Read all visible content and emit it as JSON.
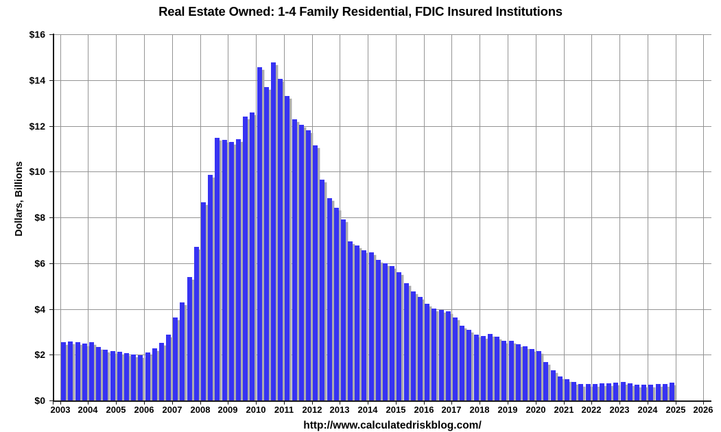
{
  "chart_data": {
    "type": "bar",
    "title": "Real Estate Owned: 1-4 Family Residential, FDIC Insured Institutions",
    "ylabel": "Dollars, Billions",
    "xlabel": "",
    "footer_url": "http://www.calculatedriskblog.com/",
    "unit": "billions of dollars",
    "frequency": "quarterly",
    "grid": true,
    "legend": false,
    "ylim": [
      0,
      16
    ],
    "y_ticks": [
      0,
      2,
      4,
      6,
      8,
      10,
      12,
      14,
      16
    ],
    "y_tick_labels": [
      "$0",
      "$2",
      "$4",
      "$6",
      "$8",
      "$10",
      "$12",
      "$14",
      "$16"
    ],
    "x_tick_labels": [
      "2003",
      "2004",
      "2005",
      "2006",
      "2007",
      "2008",
      "2009",
      "2010",
      "2011",
      "2012",
      "2013",
      "2014",
      "2015",
      "2016",
      "2017",
      "2018",
      "2019",
      "2020",
      "2021",
      "2022",
      "2023",
      "2024",
      "2025",
      "2026"
    ],
    "bar_color": "#3733F2",
    "bar_shadow_color": "#ACACAC",
    "gridline_color": "#949494",
    "axis_color": "#1A1A1A",
    "data": [
      {
        "year": 2003,
        "values": [
          2.55,
          2.58,
          2.54,
          2.48
        ]
      },
      {
        "year": 2004,
        "values": [
          2.54,
          2.35,
          2.23,
          2.17
        ]
      },
      {
        "year": 2005,
        "values": [
          2.13,
          2.06,
          2.0,
          1.98
        ]
      },
      {
        "year": 2006,
        "values": [
          2.1,
          2.28,
          2.53,
          2.88
        ]
      },
      {
        "year": 2007,
        "values": [
          3.62,
          4.28,
          5.38,
          6.72
        ]
      },
      {
        "year": 2008,
        "values": [
          8.65,
          9.85,
          11.48,
          11.4
        ]
      },
      {
        "year": 2009,
        "values": [
          11.3,
          11.42,
          12.4,
          12.6
        ]
      },
      {
        "year": 2010,
        "values": [
          14.55,
          13.7,
          14.76,
          14.05
        ]
      },
      {
        "year": 2011,
        "values": [
          13.3,
          12.28,
          12.05,
          11.8
        ]
      },
      {
        "year": 2012,
        "values": [
          11.15,
          9.65,
          8.85,
          8.42
        ]
      },
      {
        "year": 2013,
        "values": [
          7.92,
          6.95,
          6.76,
          6.55
        ]
      },
      {
        "year": 2014,
        "values": [
          6.47,
          6.13,
          5.98,
          5.87
        ]
      },
      {
        "year": 2015,
        "values": [
          5.6,
          5.12,
          4.77,
          4.53
        ]
      },
      {
        "year": 2016,
        "values": [
          4.22,
          4.02,
          3.95,
          3.9
        ]
      },
      {
        "year": 2017,
        "values": [
          3.63,
          3.28,
          3.08,
          2.89
        ]
      },
      {
        "year": 2018,
        "values": [
          2.82,
          2.92,
          2.78,
          2.62
        ]
      },
      {
        "year": 2019,
        "values": [
          2.62,
          2.45,
          2.36,
          2.26
        ]
      },
      {
        "year": 2020,
        "values": [
          2.16,
          1.68,
          1.32,
          1.06
        ]
      },
      {
        "year": 2021,
        "values": [
          0.92,
          0.8,
          0.73,
          0.72
        ]
      },
      {
        "year": 2022,
        "values": [
          0.71,
          0.74,
          0.76,
          0.79
        ]
      },
      {
        "year": 2023,
        "values": [
          0.82,
          0.74,
          0.68,
          0.68
        ]
      },
      {
        "year": 2024,
        "values": [
          0.69,
          0.73,
          0.71,
          0.78
        ]
      }
    ]
  }
}
